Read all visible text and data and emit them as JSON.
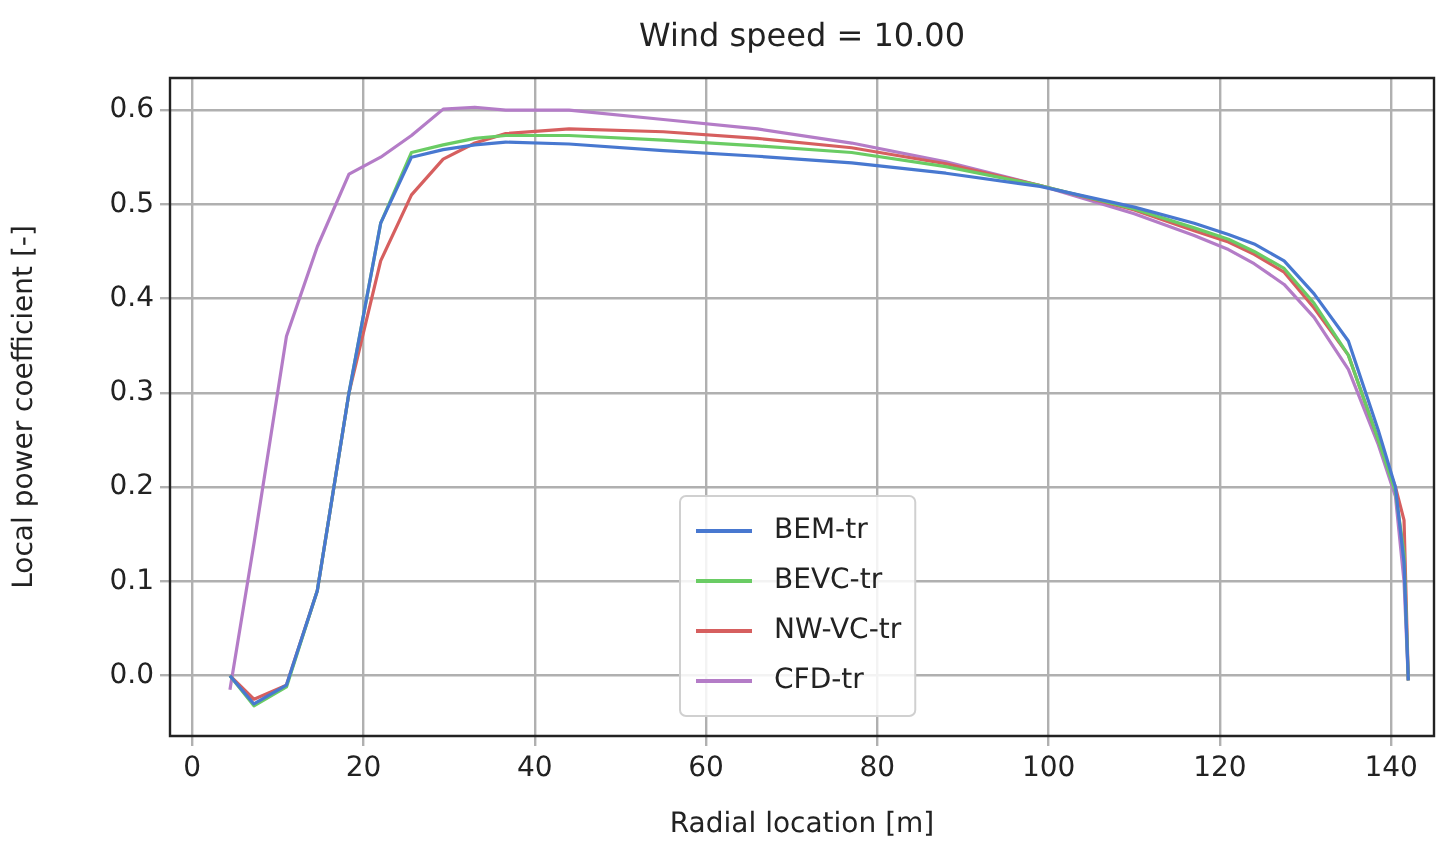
{
  "chart_data": {
    "type": "line",
    "title": "Wind speed = 10.00",
    "xlabel": "Radial location [m]",
    "ylabel": "Local power coefficient [-]",
    "x": [
      4.4,
      7.2,
      11,
      14.6,
      18.3,
      22,
      25.6,
      29.3,
      33,
      36.6,
      44,
      55,
      66,
      77,
      88,
      99,
      110,
      117,
      121,
      124,
      127.5,
      131,
      135,
      138.5,
      140.5,
      141.5,
      142
    ],
    "series": [
      {
        "name": "BEM-tr",
        "color": "#4878d0",
        "values": [
          0,
          -0.03,
          -0.01,
          0.09,
          0.3,
          0.48,
          0.55,
          0.558,
          0.563,
          0.566,
          0.564,
          0.557,
          0.551,
          0.544,
          0.533,
          0.519,
          0.497,
          0.48,
          0.468,
          0.458,
          0.44,
          0.405,
          0.355,
          0.26,
          0.2,
          0.12,
          -0.005
        ]
      },
      {
        "name": "BEVC-tr",
        "color": "#6acc64",
        "values": [
          0,
          -0.032,
          -0.012,
          0.09,
          0.3,
          0.48,
          0.555,
          0.563,
          0.57,
          0.573,
          0.573,
          0.568,
          0.562,
          0.555,
          0.54,
          0.52,
          0.495,
          0.475,
          0.463,
          0.45,
          0.432,
          0.395,
          0.34,
          0.25,
          0.195,
          0.13,
          -0.005
        ]
      },
      {
        "name": "NW-VC-tr",
        "color": "#d65f5f",
        "values": [
          0,
          -0.025,
          -0.01,
          0.09,
          0.3,
          0.44,
          0.51,
          0.548,
          0.565,
          0.575,
          0.58,
          0.577,
          0.57,
          0.56,
          0.543,
          0.52,
          0.494,
          0.472,
          0.46,
          0.447,
          0.428,
          0.39,
          0.34,
          0.25,
          0.2,
          0.165,
          -0.005
        ]
      },
      {
        "name": "CFD-tr",
        "color": "#b47cc7",
        "values": [
          -0.015,
          0.14,
          0.36,
          0.455,
          0.532,
          0.55,
          0.573,
          0.601,
          0.603,
          0.6,
          0.6,
          0.59,
          0.58,
          0.565,
          0.545,
          0.52,
          0.49,
          0.467,
          0.452,
          0.437,
          0.415,
          0.38,
          0.325,
          0.245,
          0.19,
          0.1,
          -0.005
        ]
      }
    ],
    "xlim": [
      -2.6,
      145
    ],
    "xticks": [
      0,
      20,
      40,
      60,
      80,
      100,
      120,
      140
    ],
    "ylim": [
      -0.064,
      0.634
    ],
    "yticks": [
      {
        "value": 0,
        "label": "0.0"
      },
      {
        "value": 0.1,
        "label": "0.1"
      },
      {
        "value": 0.2,
        "label": "0.2"
      },
      {
        "value": 0.3,
        "label": "0.3"
      },
      {
        "value": 0.4,
        "label": "0.4"
      },
      {
        "value": 0.5,
        "label": "0.5"
      },
      {
        "value": 0.6,
        "label": "0.6"
      }
    ],
    "grid": true,
    "legend": "bottom",
    "marker": "none",
    "line_style": "solid"
  }
}
